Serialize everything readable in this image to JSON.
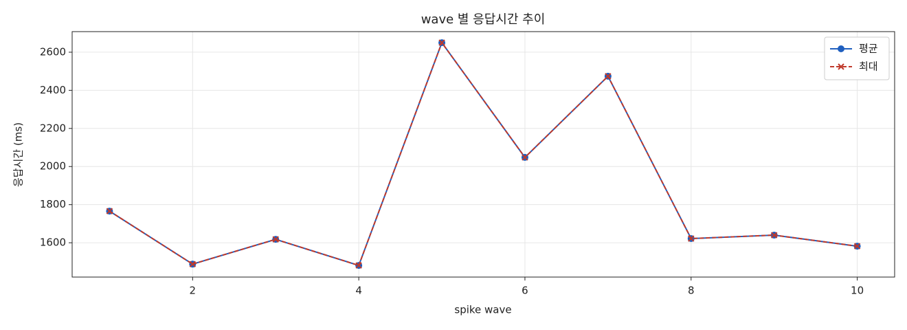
{
  "chart_data": {
    "type": "line",
    "title": "wave 별 응답시간 추이",
    "x_label": "spike wave",
    "y_label": "응답시간 (ms)",
    "x": [
      1,
      2,
      3,
      4,
      5,
      6,
      7,
      8,
      9,
      10
    ],
    "series": [
      {
        "name": "평균",
        "color": "#1f5fbf",
        "marker": "circle",
        "dash": false,
        "values": [
          1766,
          1488,
          1618,
          1481,
          2650,
          2048,
          2474,
          1622,
          1640,
          1582
        ]
      },
      {
        "name": "최대",
        "color": "#c0392b",
        "marker": "x",
        "dash": true,
        "values": [
          1766,
          1488,
          1618,
          1481,
          2650,
          2048,
          2474,
          1622,
          1640,
          1582
        ]
      }
    ],
    "xlim": [
      0.55,
      10.45
    ],
    "ylim": [
      1420,
      2708
    ],
    "xticks": [
      2,
      4,
      6,
      8,
      10
    ],
    "yticks": [
      1600,
      1800,
      2000,
      2200,
      2400,
      2600
    ],
    "grid": true,
    "legend": "upper right"
  }
}
